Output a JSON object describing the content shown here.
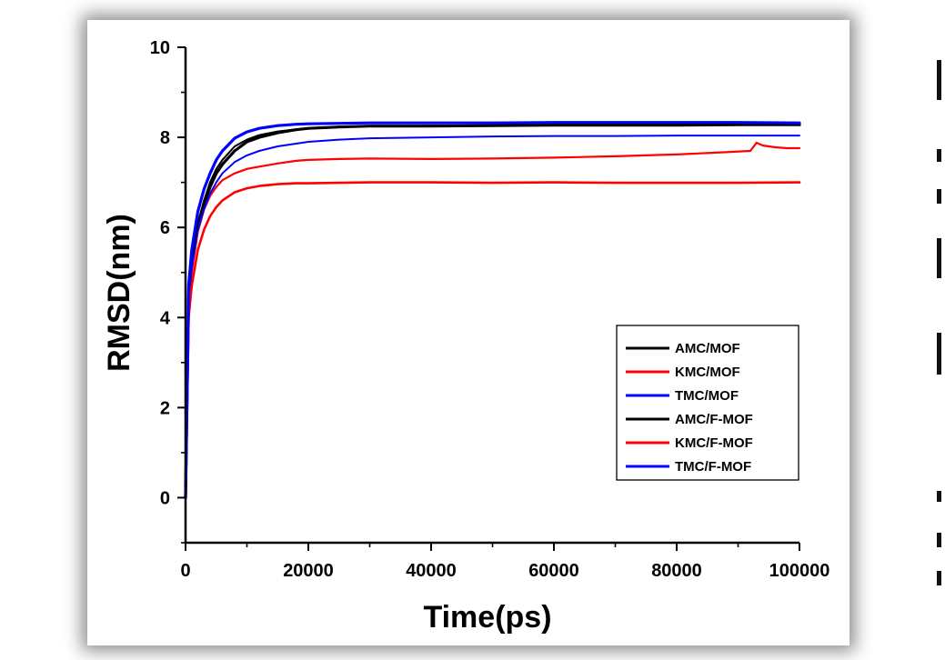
{
  "chart_data": {
    "type": "line",
    "title": "",
    "xlabel": "Time(ps)",
    "ylabel": "RMSD(nm)",
    "xlim": [
      0,
      100000
    ],
    "ylim": [
      -1,
      10
    ],
    "xticks": [
      "0",
      "20000",
      "40000",
      "60000",
      "80000",
      "100000"
    ],
    "yticks": [
      "0",
      "2",
      "4",
      "6",
      "8",
      "10"
    ],
    "legend_position": "lower-right",
    "series": [
      {
        "name": "AMC/MOF",
        "color": "#000000",
        "width": 3.2,
        "x": [
          0,
          500,
          1000,
          2000,
          3000,
          4000,
          5000,
          6000,
          8000,
          10000,
          12000,
          15000,
          18000,
          20000,
          25000,
          30000,
          40000,
          50000,
          60000,
          70000,
          80000,
          90000,
          100000
        ],
        "y": [
          0,
          4.4,
          5.2,
          6.0,
          6.5,
          6.9,
          7.2,
          7.4,
          7.7,
          7.9,
          8.0,
          8.1,
          8.17,
          8.2,
          8.23,
          8.25,
          8.25,
          8.26,
          8.27,
          8.27,
          8.27,
          8.28,
          8.28
        ]
      },
      {
        "name": "KMC/MOF",
        "color": "#ff0000",
        "width": 2.2,
        "x": [
          0,
          500,
          1000,
          2000,
          3000,
          4000,
          5000,
          6000,
          8000,
          10000,
          12000,
          15000,
          18000,
          20000,
          25000,
          30000,
          40000,
          50000,
          60000,
          70000,
          80000,
          88000,
          92000,
          93000,
          94000,
          96000,
          98000,
          100000
        ],
        "y": [
          0,
          4.2,
          5.0,
          5.9,
          6.4,
          6.7,
          6.9,
          7.05,
          7.2,
          7.3,
          7.35,
          7.42,
          7.48,
          7.5,
          7.52,
          7.53,
          7.52,
          7.53,
          7.55,
          7.58,
          7.62,
          7.67,
          7.7,
          7.88,
          7.82,
          7.78,
          7.76,
          7.76
        ]
      },
      {
        "name": "TMC/MOF",
        "color": "#0000ff",
        "width": 2.0,
        "x": [
          0,
          500,
          1000,
          2000,
          3000,
          4000,
          5000,
          6000,
          8000,
          10000,
          12000,
          15000,
          18000,
          20000,
          25000,
          30000,
          40000,
          50000,
          60000,
          70000,
          80000,
          90000,
          100000
        ],
        "y": [
          0,
          4.3,
          5.1,
          5.95,
          6.4,
          6.75,
          7.0,
          7.2,
          7.45,
          7.6,
          7.7,
          7.8,
          7.86,
          7.9,
          7.95,
          7.98,
          8.0,
          8.02,
          8.03,
          8.03,
          8.04,
          8.04,
          8.04
        ]
      },
      {
        "name": "AMC/F-MOF",
        "color": "#000000",
        "width": 2.0,
        "x": [
          0,
          500,
          1000,
          2000,
          3000,
          4000,
          5000,
          6000,
          8000,
          10000,
          12000,
          15000,
          18000,
          20000,
          25000,
          30000,
          40000,
          50000,
          60000,
          70000,
          80000,
          90000,
          100000
        ],
        "y": [
          0,
          4.5,
          5.3,
          6.1,
          6.6,
          7.0,
          7.3,
          7.5,
          7.8,
          7.95,
          8.05,
          8.13,
          8.18,
          8.2,
          8.24,
          8.25,
          8.26,
          8.27,
          8.28,
          8.28,
          8.29,
          8.29,
          8.3
        ]
      },
      {
        "name": "KMC/F-MOF",
        "color": "#ff0000",
        "width": 2.6,
        "x": [
          0,
          500,
          1000,
          2000,
          3000,
          4000,
          5000,
          6000,
          8000,
          10000,
          12000,
          15000,
          18000,
          20000,
          25000,
          30000,
          40000,
          50000,
          60000,
          70000,
          80000,
          90000,
          100000
        ],
        "y": [
          0,
          4.0,
          4.7,
          5.5,
          5.95,
          6.25,
          6.45,
          6.6,
          6.78,
          6.87,
          6.92,
          6.96,
          6.98,
          6.98,
          6.99,
          7.0,
          7.0,
          6.99,
          7.0,
          6.99,
          6.99,
          6.99,
          7.0
        ]
      },
      {
        "name": "TMC/F-MOF",
        "color": "#0000ff",
        "width": 3.2,
        "x": [
          0,
          500,
          1000,
          2000,
          3000,
          4000,
          5000,
          6000,
          8000,
          10000,
          12000,
          15000,
          18000,
          20000,
          25000,
          30000,
          40000,
          50000,
          60000,
          70000,
          80000,
          90000,
          100000
        ],
        "y": [
          0,
          4.7,
          5.5,
          6.35,
          6.85,
          7.2,
          7.5,
          7.7,
          7.98,
          8.12,
          8.2,
          8.26,
          8.29,
          8.3,
          8.31,
          8.32,
          8.32,
          8.32,
          8.33,
          8.33,
          8.33,
          8.33,
          8.32
        ]
      }
    ]
  },
  "legend": {
    "entries": [
      "AMC/MOF",
      "KMC/MOF",
      "TMC/MOF",
      "AMC/F-MOF",
      "KMC/F-MOF",
      "TMC/F-MOF"
    ]
  }
}
